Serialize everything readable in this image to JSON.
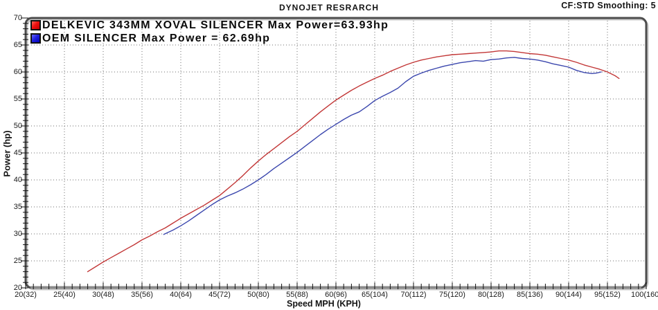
{
  "header": {
    "title": "DYNOJET RESRARCH",
    "smoothing": "CF:STD Smoothing: 5"
  },
  "axes": {
    "y_label": "Power (hp)",
    "x_label": "Speed MPH (KPH)"
  },
  "legend": [
    {
      "label": "DELKEVIC 343MM XOVAL SILENCER Max Power=63.93hp",
      "swatch_color": "#ee1111"
    },
    {
      "label": "OEM SILENCER Max Power = 62.69hp",
      "swatch_color": "#2222e0"
    }
  ],
  "chart_data": {
    "type": "line",
    "title": "DYNOJET RESRARCH",
    "xlabel": "Speed MPH (KPH)",
    "ylabel": "Power (hp)",
    "xlim": [
      20,
      100
    ],
    "ylim": [
      20,
      70
    ],
    "grid": "dotted",
    "legend_position": "top-left inside plot",
    "x_ticks": [
      {
        "mph": 20,
        "label": "20(32)"
      },
      {
        "mph": 25,
        "label": "25(40)"
      },
      {
        "mph": 30,
        "label": "30(48)"
      },
      {
        "mph": 35,
        "label": "35(56)"
      },
      {
        "mph": 40,
        "label": "40(64)"
      },
      {
        "mph": 45,
        "label": "45(72)"
      },
      {
        "mph": 50,
        "label": "50(80)"
      },
      {
        "mph": 55,
        "label": "55(88)"
      },
      {
        "mph": 60,
        "label": "60(96)"
      },
      {
        "mph": 65,
        "label": "65(104)"
      },
      {
        "mph": 70,
        "label": "70(112)"
      },
      {
        "mph": 75,
        "label": "75(120)"
      },
      {
        "mph": 80,
        "label": "80(128)"
      },
      {
        "mph": 85,
        "label": "85(136)"
      },
      {
        "mph": 90,
        "label": "90(144)"
      },
      {
        "mph": 95,
        "label": "95(152)"
      },
      {
        "mph": 100,
        "label": "100(160)"
      }
    ],
    "y_ticks": [
      20,
      25,
      30,
      35,
      40,
      45,
      50,
      55,
      60,
      65,
      70
    ],
    "minor_tick_step_x_mph": 1,
    "minor_tick_step_y_hp": 1,
    "series": [
      {
        "name": "DELKEVIC 343MM XOVAL SILENCER",
        "max_power_hp": 63.93,
        "color": "#c23636",
        "points": [
          [
            28,
            23.0
          ],
          [
            29,
            23.9
          ],
          [
            30,
            24.8
          ],
          [
            31,
            25.6
          ],
          [
            32,
            26.4
          ],
          [
            33,
            27.2
          ],
          [
            34,
            28.0
          ],
          [
            35,
            28.9
          ],
          [
            36,
            29.6
          ],
          [
            37,
            30.4
          ],
          [
            38,
            31.1
          ],
          [
            39,
            32.0
          ],
          [
            40,
            32.9
          ],
          [
            41,
            33.7
          ],
          [
            42,
            34.5
          ],
          [
            43,
            35.3
          ],
          [
            44,
            36.2
          ],
          [
            45,
            37.1
          ],
          [
            46,
            38.3
          ],
          [
            47,
            39.5
          ],
          [
            48,
            40.8
          ],
          [
            49,
            42.2
          ],
          [
            50,
            43.5
          ],
          [
            51,
            44.7
          ],
          [
            52,
            45.8
          ],
          [
            53,
            46.9
          ],
          [
            54,
            48.0
          ],
          [
            55,
            49.0
          ],
          [
            56,
            50.2
          ],
          [
            57,
            51.4
          ],
          [
            58,
            52.6
          ],
          [
            59,
            53.7
          ],
          [
            60,
            54.8
          ],
          [
            61,
            55.7
          ],
          [
            62,
            56.6
          ],
          [
            63,
            57.4
          ],
          [
            64,
            58.1
          ],
          [
            65,
            58.8
          ],
          [
            66,
            59.4
          ],
          [
            67,
            60.1
          ],
          [
            68,
            60.7
          ],
          [
            69,
            61.3
          ],
          [
            70,
            61.8
          ],
          [
            71,
            62.2
          ],
          [
            72,
            62.5
          ],
          [
            73,
            62.8
          ],
          [
            74,
            63.0
          ],
          [
            75,
            63.2
          ],
          [
            76,
            63.3
          ],
          [
            77,
            63.4
          ],
          [
            78,
            63.5
          ],
          [
            79,
            63.6
          ],
          [
            80,
            63.7
          ],
          [
            81,
            63.9
          ],
          [
            82,
            63.9
          ],
          [
            83,
            63.8
          ],
          [
            84,
            63.6
          ],
          [
            85,
            63.4
          ],
          [
            86,
            63.3
          ],
          [
            87,
            63.1
          ],
          [
            88,
            62.8
          ],
          [
            89,
            62.5
          ],
          [
            90,
            62.2
          ],
          [
            91,
            61.8
          ],
          [
            92,
            61.3
          ],
          [
            93,
            60.9
          ],
          [
            94,
            60.5
          ],
          [
            95,
            60.0
          ],
          [
            96,
            59.3
          ],
          [
            96.5,
            58.8
          ]
        ]
      },
      {
        "name": "OEM SILENCER",
        "max_power_hp": 62.69,
        "color": "#3a46ad",
        "points": [
          [
            37.8,
            29.9
          ],
          [
            39,
            30.7
          ],
          [
            40,
            31.5
          ],
          [
            41,
            32.4
          ],
          [
            42,
            33.4
          ],
          [
            43,
            34.4
          ],
          [
            44,
            35.4
          ],
          [
            45,
            36.3
          ],
          [
            46,
            37.0
          ],
          [
            47,
            37.6
          ],
          [
            48,
            38.3
          ],
          [
            49,
            39.1
          ],
          [
            50,
            40.0
          ],
          [
            51,
            41.0
          ],
          [
            52,
            42.1
          ],
          [
            53,
            43.1
          ],
          [
            54,
            44.1
          ],
          [
            55,
            45.1
          ],
          [
            56,
            46.2
          ],
          [
            57,
            47.3
          ],
          [
            58,
            48.4
          ],
          [
            59,
            49.4
          ],
          [
            60,
            50.3
          ],
          [
            61,
            51.2
          ],
          [
            62,
            52.0
          ],
          [
            63,
            52.6
          ],
          [
            64,
            53.6
          ],
          [
            65,
            54.7
          ],
          [
            66,
            55.5
          ],
          [
            67,
            56.2
          ],
          [
            68,
            57.0
          ],
          [
            69,
            58.2
          ],
          [
            70,
            59.2
          ],
          [
            71,
            59.8
          ],
          [
            72,
            60.3
          ],
          [
            73,
            60.7
          ],
          [
            74,
            61.1
          ],
          [
            75,
            61.4
          ],
          [
            76,
            61.7
          ],
          [
            77,
            61.9
          ],
          [
            78,
            62.1
          ],
          [
            79,
            62.0
          ],
          [
            80,
            62.3
          ],
          [
            81,
            62.4
          ],
          [
            82,
            62.6
          ],
          [
            83,
            62.7
          ],
          [
            84,
            62.5
          ],
          [
            85,
            62.4
          ],
          [
            86,
            62.2
          ],
          [
            87,
            61.9
          ],
          [
            88,
            61.5
          ],
          [
            89,
            61.2
          ],
          [
            90,
            60.9
          ],
          [
            91,
            60.3
          ],
          [
            92,
            59.9
          ],
          [
            93,
            59.7
          ],
          [
            93.6,
            59.8
          ],
          [
            94.2,
            60.0
          ]
        ]
      }
    ]
  }
}
